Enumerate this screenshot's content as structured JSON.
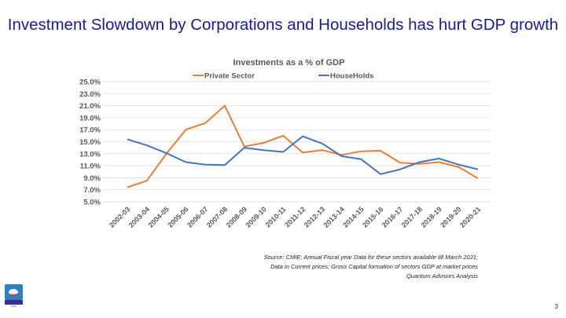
{
  "slide": {
    "title": "Investment Slowdown by Corporations and Households has hurt GDP growth",
    "source_lines": [
      "Source: CMIE; Annual Fiscal year Data for these sectors available till March 2021;",
      "Data in Current prices; Gross Capital formation of sectors  GDP at market prices",
      "Quantum Advisors Analysis"
    ],
    "page_number": "3",
    "logo_text": "QUANTUM INDIA"
  },
  "chart_data": {
    "type": "line",
    "title": "Investments as a % of GDP",
    "xlabel": "",
    "ylabel": "",
    "ylim": [
      5,
      25
    ],
    "yticks": [
      "5.0%",
      "7.0%",
      "9.0%",
      "11.0%",
      "13.0%",
      "15.0%",
      "17.0%",
      "19.0%",
      "21.0%",
      "23.0%",
      "25.0%"
    ],
    "grid": true,
    "legend": "top",
    "categories": [
      "2002-03",
      "2003-04",
      "2004-05",
      "2005-06",
      "2006-07",
      "2007-08",
      "2008-09",
      "2009-10",
      "2010-11",
      "2011-12",
      "2012-13",
      "2013-14",
      "2014-15",
      "2015-16",
      "2016-17",
      "2017-18",
      "2018-19",
      "2019-20",
      "2020-21"
    ],
    "series": [
      {
        "name": "Private Sector",
        "color": "#ed7d31",
        "values": [
          7.4,
          8.5,
          13.0,
          17.0,
          18.1,
          21.0,
          14.2,
          14.8,
          16.0,
          13.2,
          13.6,
          12.8,
          13.4,
          13.5,
          11.5,
          11.3,
          11.6,
          10.8,
          8.9
        ]
      },
      {
        "name": "HouseHolds",
        "color": "#4472c4",
        "values": [
          15.4,
          14.4,
          13.1,
          11.6,
          11.2,
          11.1,
          14.0,
          13.6,
          13.3,
          15.9,
          14.7,
          12.6,
          12.1,
          9.6,
          10.4,
          11.6,
          12.2,
          11.2,
          10.4
        ]
      }
    ]
  }
}
